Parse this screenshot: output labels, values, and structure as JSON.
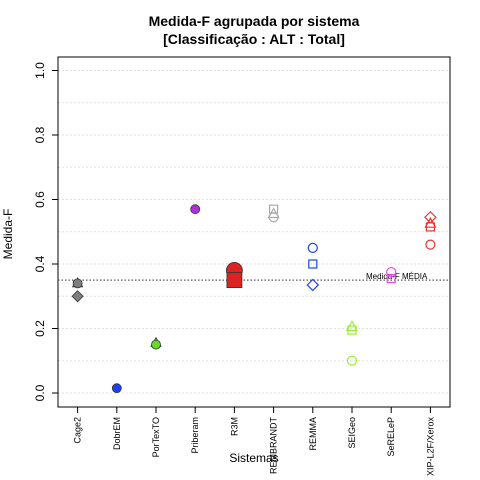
{
  "chart_data": {
    "type": "scatter",
    "title": "Medida-F agrupada por sistema",
    "subtitle": "[Classificação : ALT : Total]",
    "xlabel": "Sistemas",
    "ylabel": "Medida-F",
    "ylim": [
      0.0,
      1.0
    ],
    "yticks": [
      "0.0",
      "0.2",
      "0.4",
      "0.6",
      "0.8",
      "1.0"
    ],
    "grid": true,
    "categories": [
      "Cage2",
      "DobrEM",
      "PorTexTO",
      "Priberam",
      "R3M",
      "REMBRANDT",
      "REMMA",
      "SEIGeo",
      "SeRELeP",
      "XIP-L2F/Xerox"
    ],
    "reference_line": {
      "value": 0.35,
      "label": "Medida-F MÉDIA"
    },
    "points": [
      {
        "category": "Cage2",
        "y": 0.34,
        "shape": "triangle",
        "color": "#7f7f7f",
        "filled": true
      },
      {
        "category": "Cage2",
        "y": 0.34,
        "shape": "circle",
        "color": "#7f7f7f",
        "filled": true
      },
      {
        "category": "Cage2",
        "y": 0.3,
        "shape": "diamond",
        "color": "#7f7f7f",
        "filled": true
      },
      {
        "category": "DobrEM",
        "y": 0.015,
        "shape": "circle",
        "color": "#1f3fff",
        "filled": true
      },
      {
        "category": "PorTexTO",
        "y": 0.155,
        "shape": "triangle",
        "color": "#66dd22",
        "filled": true
      },
      {
        "category": "PorTexTO",
        "y": 0.15,
        "shape": "circle",
        "color": "#66dd22",
        "filled": true
      },
      {
        "category": "Priberam",
        "y": 0.57,
        "shape": "circle",
        "color": "#b030e0",
        "filled": true
      },
      {
        "category": "R3M",
        "y": 0.38,
        "shape": "circle-large",
        "color": "#dd2222",
        "filled": true
      },
      {
        "category": "R3M",
        "y": 0.35,
        "shape": "square-large",
        "color": "#dd2222",
        "filled": true
      },
      {
        "category": "REMBRANDT",
        "y": 0.57,
        "shape": "square",
        "color": "#aaaaaa",
        "filled": false
      },
      {
        "category": "REMBRANDT",
        "y": 0.555,
        "shape": "triangle",
        "color": "#aaaaaa",
        "filled": false
      },
      {
        "category": "REMBRANDT",
        "y": 0.545,
        "shape": "circle",
        "color": "#aaaaaa",
        "filled": false
      },
      {
        "category": "REMMA",
        "y": 0.45,
        "shape": "circle",
        "color": "#2244ee",
        "filled": false
      },
      {
        "category": "REMMA",
        "y": 0.4,
        "shape": "square",
        "color": "#2244ee",
        "filled": false
      },
      {
        "category": "REMMA",
        "y": 0.335,
        "shape": "diamond",
        "color": "#2244ee",
        "filled": false
      },
      {
        "category": "SEIGeo",
        "y": 0.205,
        "shape": "triangle",
        "color": "#99ee33",
        "filled": false
      },
      {
        "category": "SEIGeo",
        "y": 0.195,
        "shape": "square",
        "color": "#99ee33",
        "filled": false
      },
      {
        "category": "SEIGeo",
        "y": 0.1,
        "shape": "circle",
        "color": "#99ee33",
        "filled": false
      },
      {
        "category": "SeRELeP",
        "y": 0.375,
        "shape": "circle",
        "color": "#ee44ee",
        "filled": false
      },
      {
        "category": "SeRELeP",
        "y": 0.355,
        "shape": "square",
        "color": "#ee44ee",
        "filled": false
      },
      {
        "category": "XIP-L2F/Xerox",
        "y": 0.545,
        "shape": "diamond",
        "color": "#ee3333",
        "filled": false
      },
      {
        "category": "XIP-L2F/Xerox",
        "y": 0.525,
        "shape": "triangle",
        "color": "#ee3333",
        "filled": false
      },
      {
        "category": "XIP-L2F/Xerox",
        "y": 0.515,
        "shape": "square",
        "color": "#ee3333",
        "filled": false
      },
      {
        "category": "XIP-L2F/Xerox",
        "y": 0.46,
        "shape": "circle",
        "color": "#ee3333",
        "filled": false
      }
    ]
  }
}
